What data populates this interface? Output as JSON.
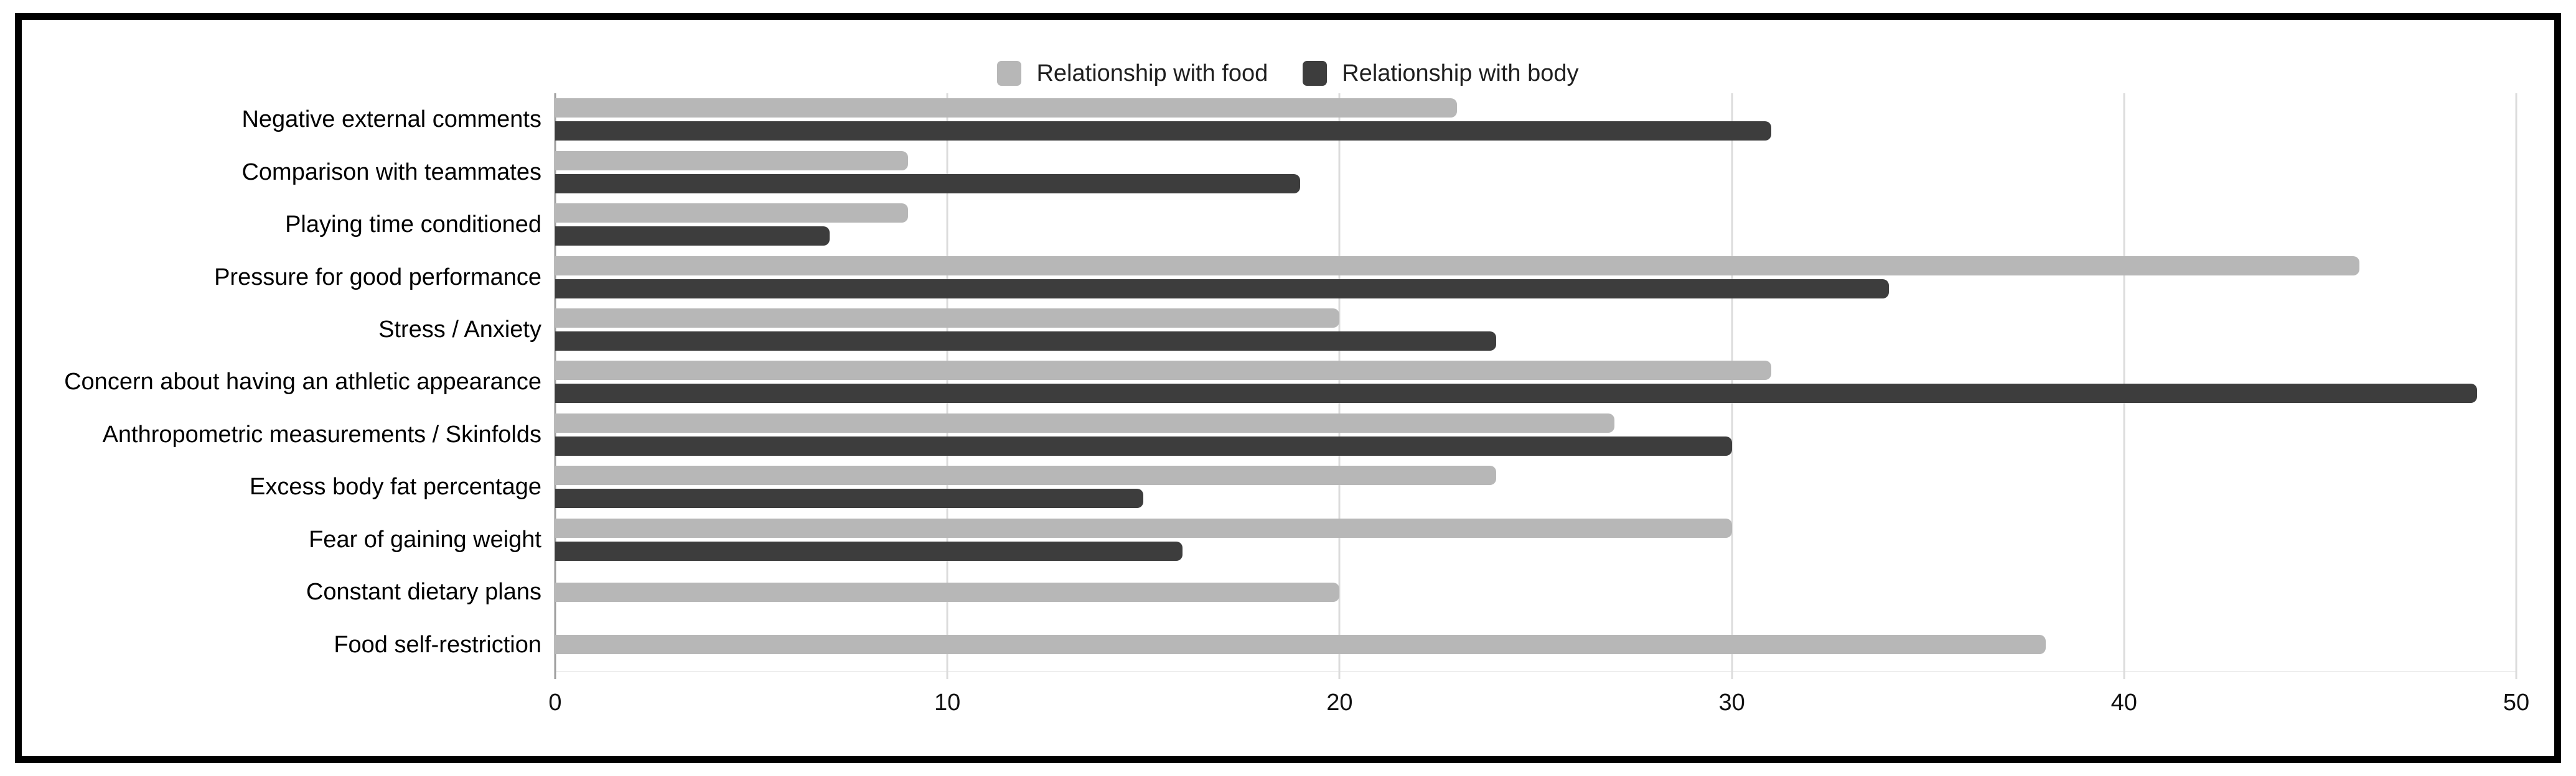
{
  "chart_data": {
    "type": "bar",
    "orientation": "horizontal",
    "title": "",
    "xlabel": "",
    "ylabel": "",
    "xlim": [
      0,
      50
    ],
    "xticks": [
      0,
      10,
      20,
      30,
      40,
      50
    ],
    "grid": "vertical",
    "legend_position": "top-center",
    "categories": [
      "Negative external comments",
      "Comparison with teammates",
      "Playing time conditioned",
      "Pressure for good performance",
      "Stress / Anxiety",
      "Concern about having an athletic appearance",
      "Anthropometric measurements / Skinfolds",
      "Excess body fat percentage",
      "Fear of gaining weight",
      "Constant dietary plans",
      "Food self-restriction"
    ],
    "series": [
      {
        "name": "Relationship with food",
        "color": "#b7b7b7",
        "values": [
          23,
          9,
          9,
          46,
          20,
          31,
          27,
          24,
          30,
          20,
          38
        ]
      },
      {
        "name": "Relationship with body",
        "color": "#3d3d3d",
        "values": [
          31,
          19,
          7,
          34,
          24,
          49,
          30,
          15,
          16,
          0,
          0
        ]
      }
    ]
  },
  "colors": {
    "frame_border": "#000000",
    "gridline": "#dcdcdc",
    "zero_axis_line": "#9e9e9e",
    "background": "#ffffff"
  }
}
